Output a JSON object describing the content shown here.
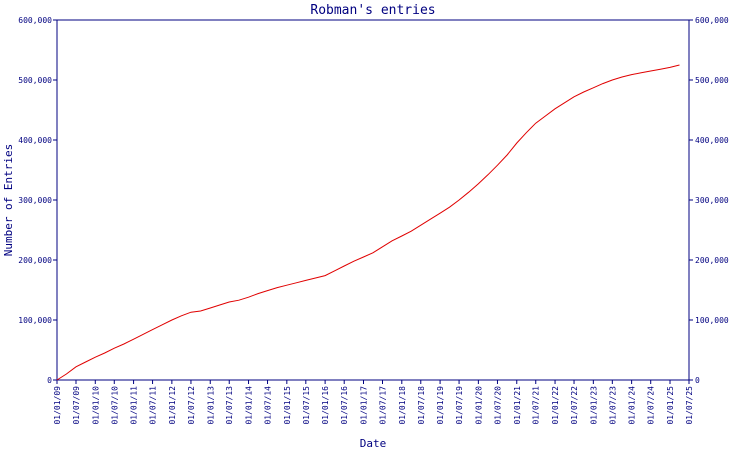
{
  "chart_data": {
    "type": "line",
    "title": "Robman's entries",
    "xlabel": "Date",
    "ylabel": "Number of Entries",
    "ylim": [
      0,
      600000
    ],
    "yticks": [
      0,
      100000,
      200000,
      300000,
      400000,
      500000,
      600000
    ],
    "ytick_labels": [
      "0",
      "100,000",
      "200,000",
      "300,000",
      "400,000",
      "500,000",
      "600,000"
    ],
    "xlim": [
      "2009-01-01",
      "2025-07-01"
    ],
    "xticks": [
      "2009-01-01",
      "2009-07-01",
      "2010-01-01",
      "2010-07-01",
      "2011-01-01",
      "2011-07-01",
      "2012-01-01",
      "2012-07-01",
      "2013-01-01",
      "2013-07-01",
      "2014-01-01",
      "2014-07-01",
      "2015-01-01",
      "2015-07-01",
      "2016-01-01",
      "2016-07-01",
      "2017-01-01",
      "2017-07-01",
      "2018-01-01",
      "2018-07-01",
      "2019-01-01",
      "2019-07-01",
      "2020-01-01",
      "2020-07-01",
      "2021-01-01",
      "2021-07-01",
      "2022-01-01",
      "2022-07-01",
      "2023-01-01",
      "2023-07-01",
      "2024-01-01",
      "2024-07-01",
      "2025-01-01",
      "2025-07-01"
    ],
    "xtick_labels": [
      "01/01/09",
      "01/07/09",
      "01/01/10",
      "01/07/10",
      "01/01/11",
      "01/07/11",
      "01/01/12",
      "01/07/12",
      "01/01/13",
      "01/07/13",
      "01/01/14",
      "01/07/14",
      "01/01/15",
      "01/07/15",
      "01/01/16",
      "01/07/16",
      "01/01/17",
      "01/07/17",
      "01/01/18",
      "01/07/18",
      "01/01/19",
      "01/07/19",
      "01/01/20",
      "01/07/20",
      "01/01/21",
      "01/07/21",
      "01/01/22",
      "01/07/22",
      "01/01/23",
      "01/07/23",
      "01/01/24",
      "01/07/24",
      "01/01/25",
      "01/07/25"
    ],
    "grid": false,
    "colors": {
      "line": "#e00000",
      "axis": "#000080",
      "text": "#000080"
    },
    "series": [
      {
        "x": [
          "2009-01-01",
          "2009-04-01",
          "2009-07-01",
          "2009-10-01",
          "2010-01-01",
          "2010-04-01",
          "2010-07-01",
          "2010-10-01",
          "2011-01-01",
          "2011-04-01",
          "2011-07-01",
          "2011-10-01",
          "2012-01-01",
          "2012-04-01",
          "2012-07-01",
          "2012-10-01",
          "2013-01-01",
          "2013-04-01",
          "2013-07-01",
          "2013-10-01",
          "2014-01-01",
          "2014-04-01",
          "2014-07-01",
          "2014-10-01",
          "2015-01-01",
          "2015-04-01",
          "2015-07-01",
          "2015-10-01",
          "2016-01-01",
          "2016-04-01",
          "2016-07-01",
          "2016-10-01",
          "2017-01-01",
          "2017-04-01",
          "2017-07-01",
          "2017-10-01",
          "2018-01-01",
          "2018-04-01",
          "2018-07-01",
          "2018-10-01",
          "2019-01-01",
          "2019-04-01",
          "2019-07-01",
          "2019-10-01",
          "2020-01-01",
          "2020-04-01",
          "2020-07-01",
          "2020-10-01",
          "2021-01-01",
          "2021-04-01",
          "2021-07-01",
          "2021-10-01",
          "2022-01-01",
          "2022-04-01",
          "2022-07-01",
          "2022-10-01",
          "2023-01-01",
          "2023-04-01",
          "2023-07-01",
          "2023-10-01",
          "2024-01-01",
          "2024-04-01",
          "2024-07-01",
          "2024-10-01",
          "2025-01-01",
          "2025-04-01"
        ],
        "y": [
          0,
          10000,
          22000,
          30000,
          38000,
          45000,
          53000,
          60000,
          68000,
          76000,
          84000,
          92000,
          100000,
          107000,
          113000,
          115000,
          120000,
          125000,
          130000,
          133000,
          138000,
          144000,
          149000,
          154000,
          158000,
          162000,
          166000,
          170000,
          174000,
          182000,
          190000,
          198000,
          205000,
          212000,
          222000,
          232000,
          240000,
          248000,
          258000,
          268000,
          278000,
          288000,
          300000,
          313000,
          327000,
          342000,
          358000,
          375000,
          395000,
          412000,
          428000,
          440000,
          452000,
          462000,
          472000,
          480000,
          487000,
          494000,
          500000,
          505000,
          509000,
          512000,
          515000,
          518000,
          521000,
          525000
        ]
      }
    ]
  }
}
